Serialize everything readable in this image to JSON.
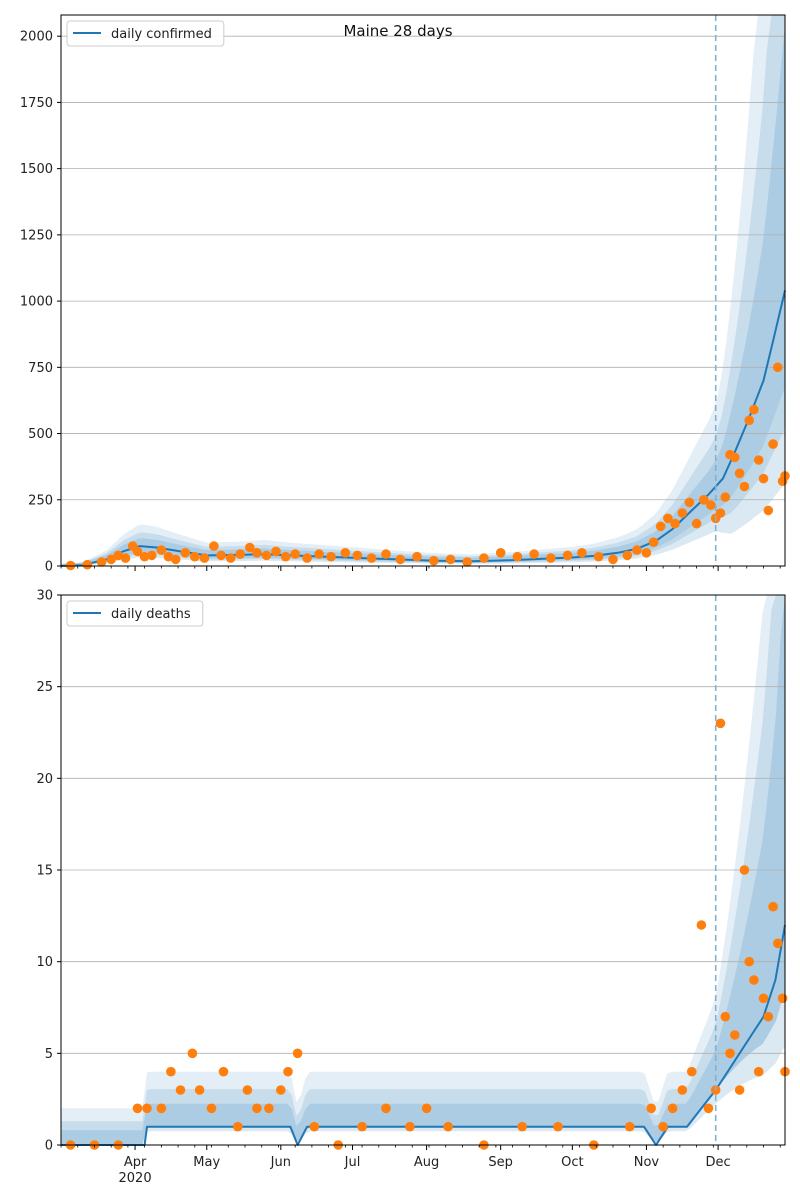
{
  "figure": {
    "title": "Maine 28 days"
  },
  "style": {
    "line_color": "#1f77b4",
    "point_color": "#ff7f0e",
    "band_color": "#1f77b4",
    "grid_color": "#b0b0b0",
    "vline_color": "#7fb2d5"
  },
  "chart_data": [
    {
      "type": "line",
      "title": "Maine 28 days",
      "legend": {
        "label": "daily confirmed",
        "placement": "top-left"
      },
      "grid": {
        "y": true,
        "x": false
      },
      "xlim": [
        "2020-03-01",
        "2020-12-29"
      ],
      "x_tick_labels": [
        "Apr",
        "May",
        "Jun",
        "Jul",
        "Aug",
        "Sep",
        "Oct",
        "Nov",
        "Dec"
      ],
      "x_tick_dates": [
        "2020-04-01",
        "2020-05-01",
        "2020-06-01",
        "2020-07-01",
        "2020-08-01",
        "2020-09-01",
        "2020-10-01",
        "2020-11-01",
        "2020-12-01"
      ],
      "year_label": "2020",
      "ylim": [
        0,
        2080
      ],
      "yticks": [
        0,
        250,
        500,
        750,
        1000,
        1250,
        1500,
        1750,
        2000
      ],
      "forecast_start": "2020-11-30",
      "series": [
        {
          "name": "daily confirmed",
          "kind": "model",
          "x": [
            "2020-03-01",
            "2020-03-10",
            "2020-03-20",
            "2020-03-27",
            "2020-04-03",
            "2020-04-10",
            "2020-04-20",
            "2020-05-01",
            "2020-05-15",
            "2020-05-25",
            "2020-06-05",
            "2020-06-20",
            "2020-07-05",
            "2020-07-20",
            "2020-08-05",
            "2020-08-20",
            "2020-09-05",
            "2020-09-20",
            "2020-10-01",
            "2020-10-10",
            "2020-10-20",
            "2020-10-28",
            "2020-11-05",
            "2020-11-12",
            "2020-11-20",
            "2020-11-27",
            "2020-12-03",
            "2020-12-08",
            "2020-12-14",
            "2020-12-20",
            "2020-12-24",
            "2020-12-29"
          ],
          "values": [
            0,
            3,
            25,
            55,
            75,
            70,
            55,
            40,
            42,
            45,
            40,
            35,
            30,
            25,
            20,
            18,
            22,
            28,
            32,
            38,
            50,
            65,
            95,
            140,
            210,
            270,
            330,
            430,
            560,
            700,
            850,
            1040
          ]
        },
        {
          "name": "daily confirmed observed",
          "kind": "points",
          "x": [
            "2020-03-05",
            "2020-03-12",
            "2020-03-18",
            "2020-03-22",
            "2020-03-25",
            "2020-03-28",
            "2020-03-31",
            "2020-04-02",
            "2020-04-05",
            "2020-04-08",
            "2020-04-12",
            "2020-04-15",
            "2020-04-18",
            "2020-04-22",
            "2020-04-26",
            "2020-04-30",
            "2020-05-04",
            "2020-05-07",
            "2020-05-11",
            "2020-05-15",
            "2020-05-19",
            "2020-05-22",
            "2020-05-26",
            "2020-05-30",
            "2020-06-03",
            "2020-06-07",
            "2020-06-12",
            "2020-06-17",
            "2020-06-22",
            "2020-06-28",
            "2020-07-03",
            "2020-07-09",
            "2020-07-15",
            "2020-07-21",
            "2020-07-28",
            "2020-08-04",
            "2020-08-11",
            "2020-08-18",
            "2020-08-25",
            "2020-09-01",
            "2020-09-08",
            "2020-09-15",
            "2020-09-22",
            "2020-09-29",
            "2020-10-05",
            "2020-10-12",
            "2020-10-18",
            "2020-10-24",
            "2020-10-28",
            "2020-11-01",
            "2020-11-04",
            "2020-11-07",
            "2020-11-10",
            "2020-11-13",
            "2020-11-16",
            "2020-11-19",
            "2020-11-22",
            "2020-11-25",
            "2020-11-28",
            "2020-11-30",
            "2020-12-02",
            "2020-12-04",
            "2020-12-06",
            "2020-12-08",
            "2020-12-10",
            "2020-12-12",
            "2020-12-14",
            "2020-12-16",
            "2020-12-18",
            "2020-12-20",
            "2020-12-22",
            "2020-12-24",
            "2020-12-26",
            "2020-12-28",
            "2020-12-29"
          ],
          "values": [
            2,
            5,
            15,
            25,
            40,
            30,
            75,
            55,
            35,
            40,
            60,
            35,
            25,
            50,
            35,
            30,
            75,
            40,
            30,
            45,
            70,
            50,
            40,
            55,
            35,
            45,
            30,
            45,
            35,
            50,
            40,
            30,
            45,
            25,
            35,
            20,
            25,
            15,
            30,
            50,
            35,
            45,
            30,
            40,
            50,
            35,
            25,
            40,
            60,
            50,
            90,
            150,
            180,
            160,
            200,
            240,
            160,
            250,
            230,
            180,
            200,
            260,
            420,
            410,
            350,
            300,
            550,
            590,
            400,
            330,
            210,
            460,
            750,
            320,
            340
          ]
        }
      ]
    },
    {
      "type": "line",
      "legend": {
        "label": "daily deaths",
        "placement": "top-left"
      },
      "grid": {
        "y": true,
        "x": false
      },
      "xlim": [
        "2020-03-01",
        "2020-12-29"
      ],
      "x_tick_labels": [
        "Apr",
        "May",
        "Jun",
        "Jul",
        "Aug",
        "Sep",
        "Oct",
        "Nov",
        "Dec"
      ],
      "x_tick_dates": [
        "2020-04-01",
        "2020-05-01",
        "2020-06-01",
        "2020-07-01",
        "2020-08-01",
        "2020-09-01",
        "2020-10-01",
        "2020-11-01",
        "2020-12-01"
      ],
      "year_label": "2020",
      "ylim": [
        0,
        30
      ],
      "yticks": [
        0,
        5,
        10,
        15,
        20,
        25,
        30
      ],
      "forecast_start": "2020-11-30",
      "series": [
        {
          "name": "daily deaths",
          "kind": "model",
          "x": [
            "2020-03-01",
            "2020-04-05",
            "2020-04-06",
            "2020-06-05",
            "2020-06-08",
            "2020-06-12",
            "2020-07-10",
            "2020-10-31",
            "2020-11-05",
            "2020-11-10",
            "2020-11-18",
            "2020-11-24",
            "2020-11-30",
            "2020-12-05",
            "2020-12-10",
            "2020-12-15",
            "2020-12-20",
            "2020-12-25",
            "2020-12-29"
          ],
          "values": [
            0,
            0,
            1,
            1,
            0,
            1,
            1,
            1,
            0,
            1,
            1,
            2,
            3,
            4,
            5,
            6,
            7,
            9,
            12
          ]
        },
        {
          "name": "daily deaths observed",
          "kind": "points",
          "x": [
            "2020-03-05",
            "2020-03-15",
            "2020-03-25",
            "2020-04-02",
            "2020-04-06",
            "2020-04-12",
            "2020-04-16",
            "2020-04-20",
            "2020-04-25",
            "2020-04-28",
            "2020-05-03",
            "2020-05-08",
            "2020-05-14",
            "2020-05-18",
            "2020-05-22",
            "2020-05-27",
            "2020-06-01",
            "2020-06-04",
            "2020-06-08",
            "2020-06-15",
            "2020-06-25",
            "2020-07-05",
            "2020-07-15",
            "2020-07-25",
            "2020-08-01",
            "2020-08-10",
            "2020-08-25",
            "2020-09-10",
            "2020-09-25",
            "2020-10-10",
            "2020-10-25",
            "2020-11-03",
            "2020-11-08",
            "2020-11-12",
            "2020-11-16",
            "2020-11-20",
            "2020-11-24",
            "2020-11-27",
            "2020-11-30",
            "2020-12-02",
            "2020-12-04",
            "2020-12-06",
            "2020-12-08",
            "2020-12-10",
            "2020-12-12",
            "2020-12-14",
            "2020-12-16",
            "2020-12-18",
            "2020-12-20",
            "2020-12-22",
            "2020-12-24",
            "2020-12-26",
            "2020-12-28",
            "2020-12-29"
          ],
          "values": [
            0,
            0,
            0,
            2,
            2,
            2,
            4,
            3,
            5,
            3,
            2,
            4,
            1,
            3,
            2,
            2,
            3,
            4,
            5,
            1,
            0,
            1,
            2,
            1,
            2,
            1,
            0,
            1,
            1,
            0,
            1,
            2,
            1,
            2,
            3,
            4,
            12,
            2,
            3,
            23,
            7,
            5,
            6,
            3,
            15,
            10,
            9,
            4,
            8,
            7,
            13,
            11,
            8,
            4
          ]
        }
      ]
    }
  ]
}
